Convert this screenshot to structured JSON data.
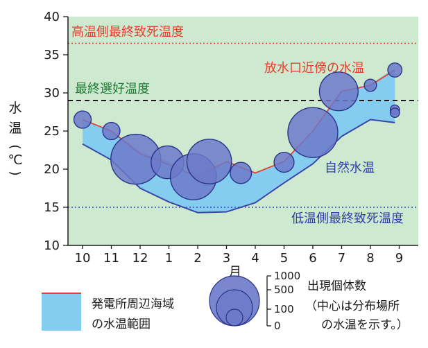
{
  "chart_data": {
    "type": "line",
    "xlabel": "月",
    "ylabel_chars": [
      "水",
      "温",
      "(",
      "℃",
      ")"
    ],
    "ylim": [
      10,
      40
    ],
    "yticks": [
      10,
      15,
      20,
      25,
      30,
      35,
      40
    ],
    "categories": [
      "10",
      "11",
      "12",
      "1",
      "2",
      "3",
      "4",
      "5",
      "6",
      "7",
      "8",
      "9"
    ],
    "colors": {
      "plot_bg": "#cde9cf",
      "band": "#84cdf0",
      "range_line": "#3a45a8",
      "water_temp_line": "#e8402c",
      "bubble_fill": "#6c79c9",
      "bubble_stroke": "#2b3488",
      "upper_lethal": "#e8402c",
      "preferred": "#1a1a1a",
      "lower_lethal": "#3347c6",
      "text_red": "#e8402c",
      "text_green": "#1e7a35",
      "text_blue": "#2f3ea8"
    },
    "reference_lines": [
      {
        "name": "upper_lethal",
        "label": "高温側最終致死温度",
        "y": 36.5,
        "style": "dotted"
      },
      {
        "name": "preferred",
        "label": "最終選好温度",
        "y": 29,
        "style": "dashed"
      },
      {
        "name": "lower_lethal",
        "label": "低温側最終致死温度",
        "y": 15,
        "style": "dotted"
      }
    ],
    "series": [
      {
        "name": "放水口近傍の水温",
        "x": [
          0,
          1,
          2,
          3,
          4,
          5,
          6,
          7,
          8,
          9,
          10,
          10.85
        ],
        "values": [
          26.5,
          25,
          22,
          20.6,
          19,
          21,
          19.5,
          21,
          25,
          30.2,
          31,
          33
        ]
      },
      {
        "name": "自然水温",
        "x": [
          0,
          1,
          2,
          3,
          4,
          5,
          6,
          7,
          8,
          9,
          10,
          10.85
        ],
        "values": [
          23.3,
          21.2,
          17.5,
          15.7,
          14.3,
          14.4,
          15.6,
          18.2,
          20.7,
          24.3,
          26.5,
          26.1
        ]
      }
    ],
    "band_x": [
      0,
      1,
      2,
      3,
      4,
      5,
      6,
      7,
      8,
      9,
      10,
      10.85
    ],
    "band_top": [
      26.5,
      25,
      22.3,
      21,
      19.3,
      21.1,
      19.5,
      21.1,
      25,
      30.3,
      31.1,
      33.3
    ],
    "band_bottom": [
      23.3,
      21.2,
      17.5,
      15.7,
      14.3,
      14.4,
      15.6,
      18.2,
      20.7,
      24.3,
      26.5,
      26.1
    ],
    "bubbles": [
      {
        "month": "10",
        "x": 0,
        "y": 26.5,
        "count": 120
      },
      {
        "month": "11",
        "x": 1,
        "y": 25,
        "count": 120
      },
      {
        "month": "12",
        "x": 1.85,
        "y": 21.3,
        "count": 1000
      },
      {
        "month": "1",
        "x": 2.95,
        "y": 20.9,
        "count": 430
      },
      {
        "month": "2",
        "x": 3.85,
        "y": 19,
        "count": 850
      },
      {
        "month": "2",
        "x": 4.4,
        "y": 21,
        "count": 800
      },
      {
        "month": "3",
        "x": 5.5,
        "y": 19.5,
        "count": 180
      },
      {
        "month": "5",
        "x": 7,
        "y": 20.9,
        "count": 160
      },
      {
        "month": "6",
        "x": 8,
        "y": 24.8,
        "count": 1000
      },
      {
        "month": "7",
        "x": 8.9,
        "y": 30.2,
        "count": 600
      },
      {
        "month": "8",
        "x": 10,
        "y": 31,
        "count": 60
      },
      {
        "month": "9",
        "x": 10.85,
        "y": 33,
        "count": 80
      },
      {
        "month": "9",
        "x": 10.85,
        "y": 27.8,
        "count": 35
      },
      {
        "month": "9",
        "x": 10.85,
        "y": 27.4,
        "count": 35
      }
    ],
    "annotations": {
      "water_temp": "放水口近傍の水温",
      "natural": "自然水温",
      "upper": "高温側最終致死温度",
      "preferred": "最終選好温度",
      "lower": "低温側最終致死温度"
    },
    "legend": {
      "band_label_lines": [
        "発電所周辺海域",
        "の水温範囲"
      ],
      "bubble_title": "出現個体数",
      "bubble_note_lines": [
        "（中心は分布場所",
        "の水温を示す。）"
      ],
      "bubble_sizes": [
        1000,
        500,
        100,
        0
      ],
      "bubble_size_labels": [
        "1000",
        "500",
        "100",
        "0"
      ]
    }
  }
}
